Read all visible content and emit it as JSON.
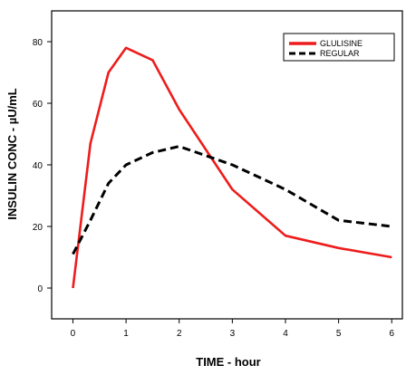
{
  "chart_data": {
    "type": "line",
    "xlabel": "TIME - hour",
    "ylabel": "INSULIN CONC - µU/mL",
    "xlim": [
      -0.4,
      6.2
    ],
    "ylim": [
      -10,
      90
    ],
    "xticks": [
      0,
      1,
      2,
      3,
      4,
      5,
      6
    ],
    "yticks": [
      0,
      20,
      40,
      60,
      80
    ],
    "grid": false,
    "legend_position": "top-right",
    "series": [
      {
        "name": "GLULISINE",
        "color": "#ee1c1c",
        "style": "solid",
        "x": [
          0,
          0.33,
          0.67,
          1,
          1.5,
          2,
          3,
          4,
          5,
          6
        ],
        "y": [
          0,
          47,
          70,
          78,
          74,
          58,
          32,
          17,
          13,
          10
        ]
      },
      {
        "name": "REGULAR",
        "color": "#000000",
        "style": "dashed",
        "x": [
          0,
          0.33,
          0.67,
          1,
          1.5,
          2,
          3,
          4,
          5,
          6
        ],
        "y": [
          11,
          22,
          34,
          40,
          44,
          46,
          40,
          32,
          22,
          20
        ]
      }
    ]
  }
}
